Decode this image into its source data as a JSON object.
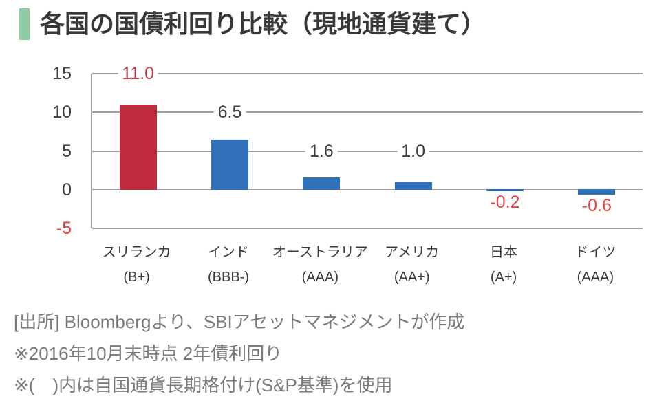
{
  "header": {
    "title": "各国の国債利回り比較（現地通貨建て）",
    "accent_color": "#8ecba2"
  },
  "chart_data": {
    "type": "bar",
    "title": "各国の国債利回り比較（現地通貨建て）",
    "categories": [
      "スリランカ",
      "インド",
      "オーストラリア",
      "アメリカ",
      "日本",
      "ドイツ"
    ],
    "ratings": [
      "(B+)",
      "(BBB-)",
      "(AAA)",
      "(AA+)",
      "(A+)",
      "(AAA)"
    ],
    "values": [
      11.0,
      6.5,
      1.6,
      1.0,
      -0.2,
      -0.6
    ],
    "labels": [
      "11.0",
      "6.5",
      "1.6",
      "1.0",
      "-0.2",
      "-0.6"
    ],
    "bar_colors": [
      "#be2b3e",
      "#2f70b8",
      "#2f70b8",
      "#2f70b8",
      "#2f70b8",
      "#2f70b8"
    ],
    "label_colors": [
      "#c43a4b",
      "#3d3d3d",
      "#3d3d3d",
      "#3d3d3d",
      "#ea4343",
      "#ea4343"
    ],
    "y_ticks": [
      15,
      10,
      5,
      0,
      -5
    ],
    "y_tick_colors": [
      "#3d3d3d",
      "#3d3d3d",
      "#3d3d3d",
      "#3d3d3d",
      "#f03d3d"
    ],
    "ylim": [
      -5,
      15
    ],
    "grid": true,
    "legend": false,
    "xlabel": "",
    "ylabel": "",
    "gridline_color": "#9e9e9e"
  },
  "footnotes": [
    "[出所] Bloombergより、SBIアセットマネジメントが作成",
    "※2016年10月末時点 2年債利回り",
    "※(　)内は自国通貨長期格付け(S&P基準)を使用"
  ]
}
